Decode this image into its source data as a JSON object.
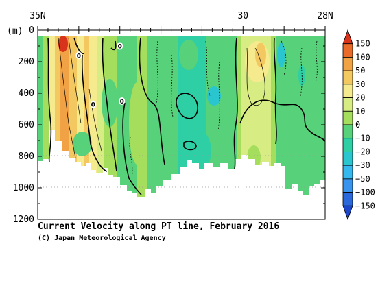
{
  "chart_data": {
    "type": "heatmap",
    "title": "Current Velocity along PT line, February 2016",
    "credit": "(C) Japan Meteorological Agency",
    "xaxis": {
      "range": [
        35,
        28
      ],
      "tick_labels": [
        {
          "value": 35,
          "label": "35N"
        },
        {
          "value": 30,
          "label": "30"
        },
        {
          "value": 28,
          "label": "28N"
        }
      ]
    },
    "yaxis": {
      "unit": "(m)",
      "range": [
        0,
        1200
      ],
      "tick_labels": [
        {
          "value": 0,
          "label": "0"
        },
        {
          "value": 200,
          "label": "200"
        },
        {
          "value": 400,
          "label": "400"
        },
        {
          "value": 600,
          "label": "600"
        },
        {
          "value": 800,
          "label": "800"
        },
        {
          "value": 1000,
          "label": "1000"
        },
        {
          "value": 1200,
          "label": "1200"
        }
      ]
    },
    "colorbar": {
      "levels": [
        "150",
        "100",
        "50",
        "30",
        "20",
        "10",
        "0",
        "−10",
        "−20",
        "−30",
        "−50",
        "−100",
        "−150"
      ],
      "colors": [
        "#d8341c",
        "#ea6a2a",
        "#f0a245",
        "#f4c860",
        "#f6ea8e",
        "#d8ec84",
        "#a4de5c",
        "#58d27a",
        "#2ecfa4",
        "#2ac6d0",
        "#35b8ee",
        "#3894ec",
        "#2a68dc",
        "#1e46c8"
      ]
    },
    "contour_labels": [
      {
        "lat": 34.0,
        "depth": 160,
        "label": "0"
      },
      {
        "lat": 33.0,
        "depth": 100,
        "label": "0"
      },
      {
        "lat": 33.65,
        "depth": 470,
        "label": "0"
      },
      {
        "lat": 32.95,
        "depth": 450,
        "label": "0"
      }
    ]
  }
}
